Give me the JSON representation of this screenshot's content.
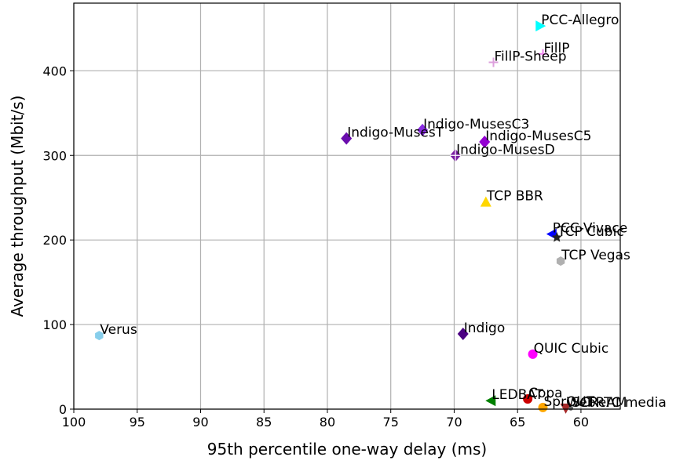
{
  "chart_data": {
    "type": "scatter",
    "title": "",
    "xlabel": "95th percentile one-way delay (ms)",
    "ylabel": "Average throughput (Mbit/s)",
    "xlim": [
      100,
      56.9
    ],
    "ylim": [
      0,
      480
    ],
    "x_reversed": true,
    "xticks": [
      100,
      95,
      90,
      85,
      80,
      75,
      70,
      65,
      60
    ],
    "yticks": [
      0,
      100,
      200,
      300,
      400
    ],
    "grid": true,
    "points": [
      {
        "label": "PCC-Allegro",
        "x": 63.2,
        "y": 453,
        "color": "#00ffff",
        "marker": "triangle-right"
      },
      {
        "label": "FillP",
        "x": 63.0,
        "y": 420,
        "color": "#ee82ee",
        "marker": "plus"
      },
      {
        "label": "FillP-Sheep",
        "x": 66.9,
        "y": 410,
        "color": "#dda0dd",
        "marker": "plus"
      },
      {
        "label": "Indigo-MusesC3",
        "x": 72.5,
        "y": 330,
        "color": "#8a2be2",
        "marker": "diamond"
      },
      {
        "label": "Indigo-MusesT",
        "x": 78.5,
        "y": 320,
        "color": "#6a0dad",
        "marker": "diamond"
      },
      {
        "label": "Indigo-MusesC5",
        "x": 67.6,
        "y": 316,
        "color": "#9400d3",
        "marker": "diamond"
      },
      {
        "label": "Indigo-MusesD",
        "x": 69.9,
        "y": 300,
        "color": "#7b1fa2",
        "marker": "diamond-plus"
      },
      {
        "label": "TCP BBR",
        "x": 67.5,
        "y": 245,
        "color": "#ffd700",
        "marker": "triangle-up"
      },
      {
        "label": "PCC-Vivace",
        "x": 62.3,
        "y": 207,
        "color": "#0000ff",
        "marker": "triangle-left"
      },
      {
        "label": "TCP Cubic",
        "x": 61.9,
        "y": 203,
        "color": "#222222",
        "marker": "star"
      },
      {
        "label": "TCP Vegas",
        "x": 61.6,
        "y": 175,
        "color": "#b0b0b0",
        "marker": "hexagon"
      },
      {
        "label": "Verus",
        "x": 98.0,
        "y": 87,
        "color": "#87ceeb",
        "marker": "hexagon"
      },
      {
        "label": "Indigo",
        "x": 69.3,
        "y": 89,
        "color": "#4b0082",
        "marker": "diamond"
      },
      {
        "label": "QUIC Cubic",
        "x": 63.8,
        "y": 65,
        "color": "#ff00ff",
        "marker": "circle"
      },
      {
        "label": "LEDBAT",
        "x": 67.1,
        "y": 10,
        "color": "#008000",
        "marker": "triangle-left"
      },
      {
        "label": "Copa",
        "x": 64.2,
        "y": 12,
        "color": "#cc0000",
        "marker": "circle"
      },
      {
        "label": "SprOUT",
        "x": 63.0,
        "y": 2,
        "color": "#ffa500",
        "marker": "circle"
      },
      {
        "label": "WebRTC media",
        "x": 61.2,
        "y": 1,
        "color": "#a52a2a",
        "marker": "triangle-down"
      },
      {
        "label": "SCReAM",
        "x": 60.8,
        "y": 1,
        "color": "#666666",
        "marker": "dot"
      }
    ]
  }
}
